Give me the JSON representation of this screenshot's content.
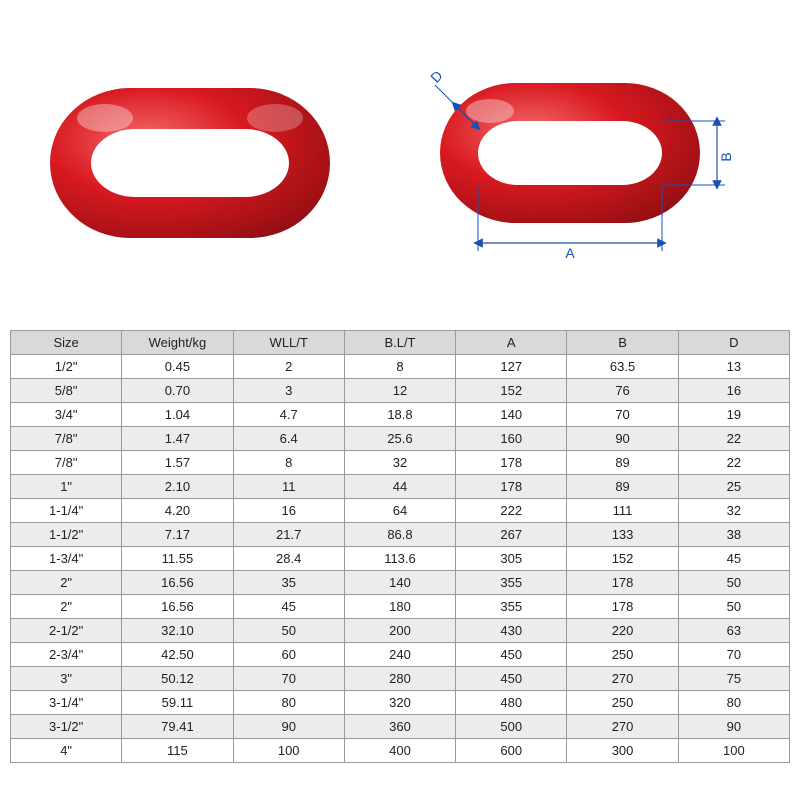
{
  "image": {
    "ring_color": "#d81920",
    "ring_highlight": "#f04a4a",
    "ring_shadow": "#8f0e12",
    "dim_line_color": "#1a4fb5",
    "dim_labels": {
      "A": "A",
      "B": "B",
      "D": "D"
    }
  },
  "table": {
    "header_bg": "#d9d9d9",
    "row_even_bg": "#ececec",
    "row_odd_bg": "#ffffff",
    "border_color": "#9a9a9a",
    "text_color": "#222222",
    "font_size_pt": 10,
    "columns": [
      "Size",
      "Weight/kg",
      "WLL/T",
      "B.L/T",
      "A",
      "B",
      "D"
    ],
    "rows": [
      [
        "1/2\"",
        "0.45",
        "2",
        "8",
        "127",
        "63.5",
        "13"
      ],
      [
        "5/8\"",
        "0.70",
        "3",
        "12",
        "152",
        "76",
        "16"
      ],
      [
        "3/4\"",
        "1.04",
        "4.7",
        "18.8",
        "140",
        "70",
        "19"
      ],
      [
        "7/8\"",
        "1.47",
        "6.4",
        "25.6",
        "160",
        "90",
        "22"
      ],
      [
        "7/8\"",
        "1.57",
        "8",
        "32",
        "178",
        "89",
        "22"
      ],
      [
        "1\"",
        "2.10",
        "11",
        "44",
        "178",
        "89",
        "25"
      ],
      [
        "1-1/4\"",
        "4.20",
        "16",
        "64",
        "222",
        "111",
        "32"
      ],
      [
        "1-1/2\"",
        "7.17",
        "21.7",
        "86.8",
        "267",
        "133",
        "38"
      ],
      [
        "1-3/4\"",
        "11.55",
        "28.4",
        "113.6",
        "305",
        "152",
        "45"
      ],
      [
        "2\"",
        "16.56",
        "35",
        "140",
        "355",
        "178",
        "50"
      ],
      [
        "2\"",
        "16.56",
        "45",
        "180",
        "355",
        "178",
        "50"
      ],
      [
        "2-1/2\"",
        "32.10",
        "50",
        "200",
        "430",
        "220",
        "63"
      ],
      [
        "2-3/4\"",
        "42.50",
        "60",
        "240",
        "450",
        "250",
        "70"
      ],
      [
        "3\"",
        "50.12",
        "70",
        "280",
        "450",
        "270",
        "75"
      ],
      [
        "3-1/4\"",
        "59.11",
        "80",
        "320",
        "480",
        "250",
        "80"
      ],
      [
        "3-1/2\"",
        "79.41",
        "90",
        "360",
        "500",
        "270",
        "90"
      ],
      [
        "4\"",
        "115",
        "100",
        "400",
        "600",
        "300",
        "100"
      ]
    ]
  }
}
